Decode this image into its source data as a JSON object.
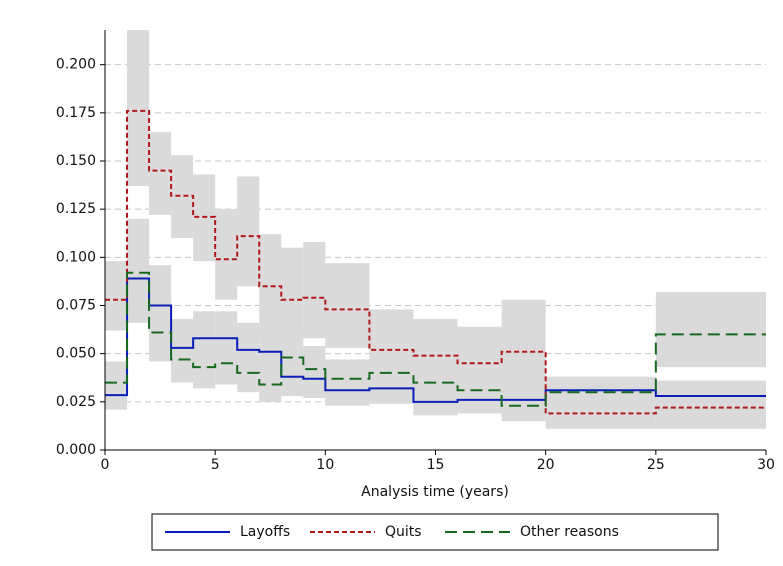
{
  "chart_data": {
    "type": "step",
    "xlabel": "Analysis time (years)",
    "x": [
      0,
      1,
      2,
      3,
      4,
      5,
      6,
      7,
      8,
      9,
      10,
      12,
      14,
      16,
      18,
      20,
      25
    ],
    "xlim": [
      0,
      30
    ],
    "xticks": [
      0,
      5,
      10,
      15,
      20,
      25,
      30
    ],
    "ylim": [
      0,
      0.218
    ],
    "yticks": [
      {
        "value": 0,
        "label": "0.000"
      },
      {
        "value": 0.025,
        "label": "0.025"
      },
      {
        "value": 0.05,
        "label": "0.050"
      },
      {
        "value": 0.075,
        "label": "0.075"
      },
      {
        "value": 0.1,
        "label": "0.100"
      },
      {
        "value": 0.125,
        "label": "0.125"
      },
      {
        "value": 0.15,
        "label": "0.150"
      },
      {
        "value": 0.175,
        "label": "0.175"
      },
      {
        "value": 0.2,
        "label": "0.200"
      }
    ],
    "grid": true,
    "band_color": "#dadada",
    "series": [
      {
        "name": "Layoffs",
        "color": "#0a1fb8",
        "line_style": "solid",
        "values": [
          0.0285,
          0.089,
          0.075,
          0.053,
          0.058,
          0.058,
          0.052,
          0.051,
          0.038,
          0.037,
          0.031,
          0.032,
          0.025,
          0.026,
          0.026,
          0.031,
          0.028
        ],
        "lower": [
          0.021,
          0.066,
          0.057,
          0.04,
          0.046,
          0.046,
          0.04,
          0.04,
          0.028,
          0.027,
          0.023,
          0.024,
          0.018,
          0.019,
          0.018,
          0.024,
          0.021
        ],
        "upper": [
          0.04,
          0.118,
          0.096,
          0.068,
          0.072,
          0.072,
          0.066,
          0.065,
          0.05,
          0.049,
          0.04,
          0.041,
          0.033,
          0.034,
          0.036,
          0.038,
          0.036
        ]
      },
      {
        "name": "Quits",
        "color": "#b01818",
        "line_style": "dotted",
        "values": [
          0.078,
          0.176,
          0.145,
          0.132,
          0.121,
          0.099,
          0.111,
          0.085,
          0.078,
          0.079,
          0.073,
          0.052,
          0.049,
          0.045,
          0.051,
          0.019,
          0.022
        ],
        "lower": [
          0.062,
          0.137,
          0.122,
          0.11,
          0.098,
          0.078,
          0.085,
          0.062,
          0.058,
          0.058,
          0.053,
          0.036,
          0.035,
          0.031,
          0.03,
          0.011,
          0.011
        ],
        "upper": [
          0.098,
          0.218,
          0.165,
          0.153,
          0.143,
          0.125,
          0.142,
          0.112,
          0.105,
          0.108,
          0.097,
          0.073,
          0.068,
          0.064,
          0.078,
          0.031,
          0.03
        ]
      },
      {
        "name": "Other reasons",
        "color": "#16691f",
        "line_style": "dashed",
        "values": [
          0.035,
          0.092,
          0.061,
          0.047,
          0.043,
          0.045,
          0.04,
          0.034,
          0.048,
          0.042,
          0.037,
          0.04,
          0.035,
          0.031,
          0.023,
          0.03,
          0.06
        ],
        "lower": [
          0.026,
          0.069,
          0.046,
          0.035,
          0.032,
          0.034,
          0.03,
          0.025,
          0.037,
          0.032,
          0.028,
          0.031,
          0.027,
          0.023,
          0.015,
          0.022,
          0.043
        ],
        "upper": [
          0.046,
          0.12,
          0.08,
          0.061,
          0.056,
          0.058,
          0.052,
          0.045,
          0.061,
          0.054,
          0.047,
          0.05,
          0.044,
          0.04,
          0.032,
          0.038,
          0.082
        ]
      }
    ]
  }
}
